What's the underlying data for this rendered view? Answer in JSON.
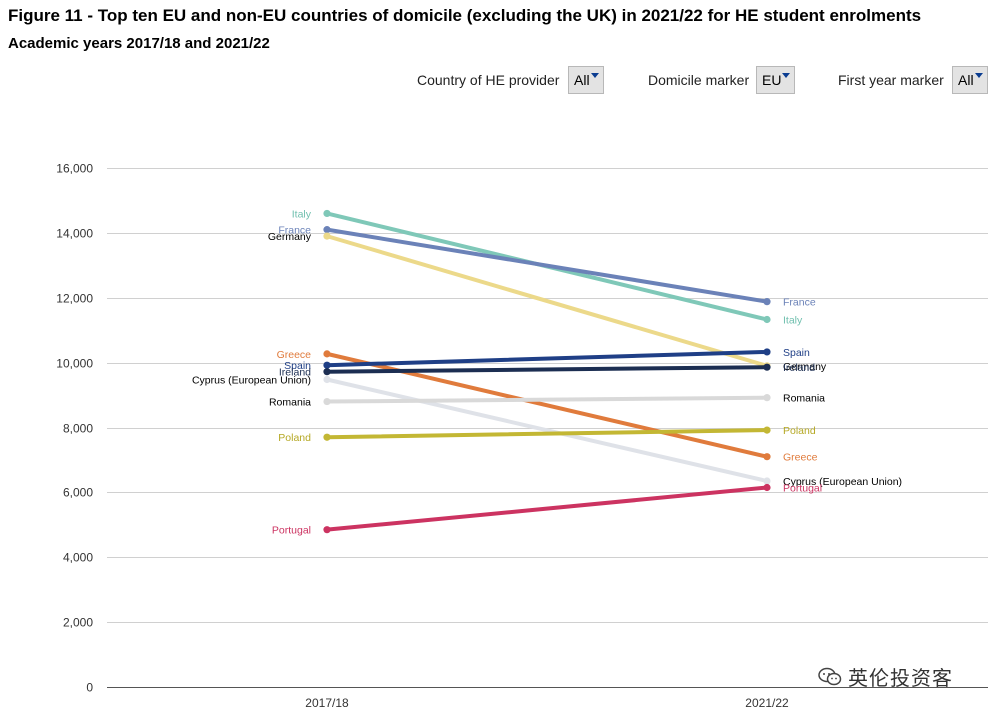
{
  "header": {
    "title": "Figure 11 - Top ten EU and non-EU countries of domicile (excluding the UK) in 2021/22 for HE student enrolments",
    "subtitle": "Academic years 2017/18 and 2021/22"
  },
  "filters": [
    {
      "label": "Country of HE provider",
      "value": "All"
    },
    {
      "label": "Domicile marker",
      "value": "EU"
    },
    {
      "label": "First year marker",
      "value": "All"
    }
  ],
  "watermark": {
    "text": "英伦投资客"
  },
  "chart_data": {
    "type": "line",
    "title": "",
    "xlabel": "",
    "ylabel": "",
    "categories": [
      "2017/18",
      "2021/22"
    ],
    "ylim": [
      0,
      16000
    ],
    "yticks": [
      0,
      2000,
      4000,
      6000,
      8000,
      10000,
      12000,
      14000,
      16000
    ],
    "ytick_labels": [
      "0",
      "2,000",
      "4,000",
      "6,000",
      "8,000",
      "10,000",
      "12,000",
      "14,000",
      "16,000"
    ],
    "grid": true,
    "legend": "direct labels at line ends",
    "series": [
      {
        "name": "Italy",
        "values": [
          14600,
          11330
        ],
        "color": "#7fc8b8",
        "label_color": "#6fbfae"
      },
      {
        "name": "France",
        "values": [
          14100,
          11880
        ],
        "color": "#6b82b8",
        "label_color": "#6b82b8"
      },
      {
        "name": "Germany",
        "values": [
          13900,
          9900
        ],
        "color": "#ecd98a",
        "label_color": "#000000"
      },
      {
        "name": "Greece",
        "values": [
          10270,
          7100
        ],
        "color": "#e07b3c",
        "label_color": "#e07b3c"
      },
      {
        "name": "Spain",
        "values": [
          9920,
          10330
        ],
        "color": "#1f3f86",
        "label_color": "#1f3f86"
      },
      {
        "name": "Ireland",
        "values": [
          9720,
          9860
        ],
        "color": "#1c2e52",
        "label_color": "#1c2e52"
      },
      {
        "name": "Cyprus (European Union)",
        "values": [
          9480,
          6350
        ],
        "color": "#dfe2e8",
        "label_color": "#000000"
      },
      {
        "name": "Romania",
        "values": [
          8800,
          8920
        ],
        "color": "#d9d9d9",
        "label_color": "#000000"
      },
      {
        "name": "Poland",
        "values": [
          7700,
          7920
        ],
        "color": "#c3b734",
        "label_color": "#b5a824"
      },
      {
        "name": "Portugal",
        "values": [
          4850,
          6150
        ],
        "color": "#cc3361",
        "label_color": "#cc3361"
      }
    ]
  }
}
